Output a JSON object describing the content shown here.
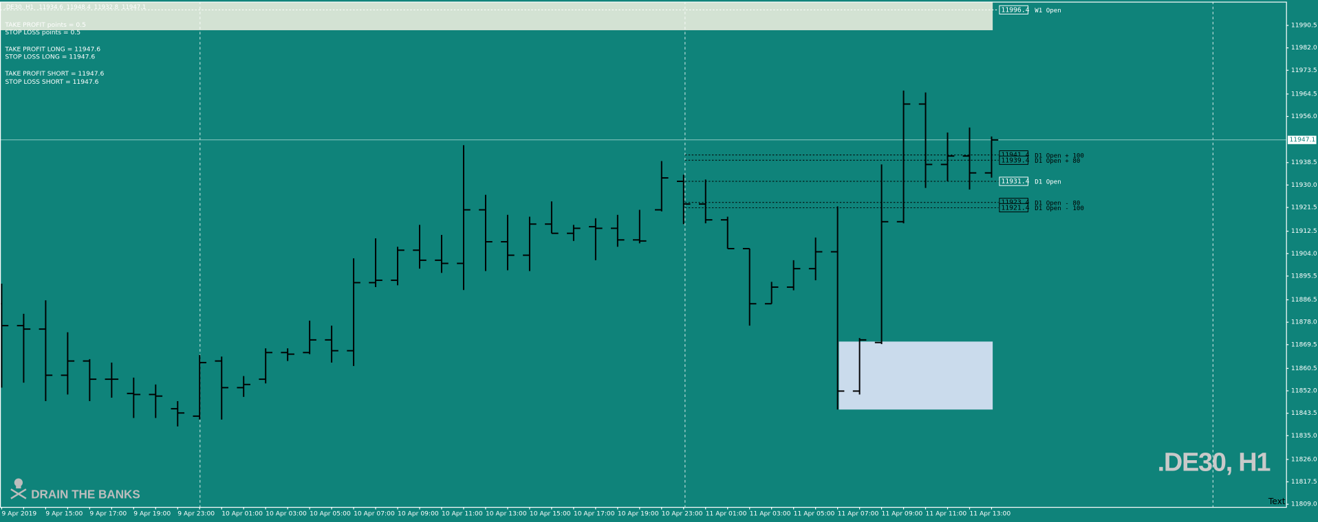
{
  "header": {
    "symbol": ".DE30, H1"
  },
  "info_lines": [
    "TAKE PROFIT points = 0.5",
    "STOP LOSS points =   0.5",
    "TAKE PROFIT LONG = 11947.6",
    "STOP LOSS LONG =   11947.6",
    "TAKE PROFIT SHORT = 11947.6",
    "STOP LOSS SHORT =   11947.6"
  ],
  "branding": "DRAIN THE BANKS",
  "corner_text": "Text",
  "chart_data": {
    "type": "ohlc",
    "color": "#000000",
    "categories": [
      "9 Apr 2019",
      null,
      "9 Apr 15:00",
      null,
      "9 Apr 17:00",
      null,
      "9 Apr 19:00",
      null,
      "9 Apr 23:00",
      null,
      "10 Apr 01:00",
      null,
      "10 Apr 03:00",
      null,
      "10 Apr 05:00",
      null,
      "10 Apr 07:00",
      null,
      "10 Apr 09:00",
      null,
      "10 Apr 11:00",
      null,
      "10 Apr 13:00",
      null,
      "10 Apr 15:00",
      null,
      "10 Apr 17:00",
      null,
      "10 Apr 19:00",
      null,
      "10 Apr 23:00",
      null,
      "11 Apr 01:00",
      null,
      "11 Apr 03:00",
      null,
      "11 Apr 05:00",
      null,
      "11 Apr 07:00",
      null,
      "11 Apr 09:00",
      null,
      "11 Apr 11:00",
      null,
      "11 Apr 13:00",
      null
    ],
    "open": [
      11885,
      11876.7,
      11875.4,
      11857.9,
      11863.3,
      11856.4,
      11851,
      11850.6,
      11845.2,
      11842.4,
      11863.3,
      11853.2,
      11856.4,
      11866.5,
      11866.5,
      11871.3,
      11867.2,
      11893,
      11893.9,
      11905.3,
      11901.5,
      11900.3,
      11920.6,
      11908.5,
      11903.4,
      11915.2,
      11911.7,
      11914.2,
      11913.6,
      11909.2,
      11920.6,
      11931.4,
      11922.8,
      11916.8,
      11905.9,
      11885,
      11891.3,
      11898.3,
      11904.7,
      11851.9,
      11870.3,
      11916.1,
      11960.7,
      11937.8,
      11941,
      11934.6
    ],
    "high": [
      11892.6,
      11881.2,
      11886.3,
      11874.2,
      11864,
      11862.7,
      11857,
      11854.4,
      11848.1,
      11865.6,
      11865,
      11857.6,
      11868.1,
      11868.1,
      11878.6,
      11876.7,
      11902.2,
      11909.8,
      11906.6,
      11914.9,
      11911.1,
      11945.1,
      11926.3,
      11918.7,
      11918,
      11923.8,
      11914.9,
      11917.4,
      11918.7,
      11920.6,
      11939.1,
      11933.9,
      11932.1,
      11918,
      11905.9,
      11893.3,
      11901.5,
      11910.1,
      11921.9,
      11872,
      11937.8,
      11965.8,
      11965.1,
      11949.9,
      11951.8,
      11948.4
    ],
    "low": [
      11853.2,
      11855.1,
      11848.1,
      11850.6,
      11848.1,
      11849.4,
      11841.7,
      11841.7,
      11838.5,
      11841.1,
      11841.1,
      11849.7,
      11854.8,
      11863.3,
      11865.9,
      11862.7,
      11861.4,
      11891.3,
      11892,
      11898.3,
      11896.7,
      11890.2,
      11897.4,
      11897.7,
      11897.4,
      11911.7,
      11908.8,
      11901.5,
      11906.6,
      11907.9,
      11920,
      11915.2,
      11915.5,
      11905.9,
      11876.7,
      11885,
      11890.1,
      11893.9,
      11844.9,
      11850.6,
      11869.7,
      11915.5,
      11928.9,
      11931.4,
      11928.3,
      11932.8
    ],
    "close": [
      11876.7,
      11875.4,
      11857.9,
      11863.3,
      11856.4,
      11856.4,
      11850.6,
      11850,
      11843.6,
      11862.7,
      11853.2,
      11854.4,
      11866.5,
      11865.9,
      11871.3,
      11867.2,
      11893,
      11893.9,
      11905.3,
      11901.5,
      11900.3,
      11920.6,
      11908.5,
      11903.4,
      11915.2,
      11911.7,
      11913.6,
      11913.6,
      11909.2,
      11908.8,
      11932.7,
      11922.8,
      11916.8,
      11905.9,
      11885,
      11891.3,
      11898.3,
      11904.7,
      11851.9,
      11871.3,
      11916.1,
      11960.7,
      11937.8,
      11941,
      11934.6,
      11947.1
    ],
    "ylim": [
      11808,
      11999.5
    ],
    "yticks": [
      11990.5,
      {
        "value": 11982,
        "label": "11982.0"
      },
      11973.5,
      11964.5,
      {
        "value": 11956,
        "label": "11956.0"
      },
      11938.5,
      {
        "value": 11930,
        "label": "11930.0"
      },
      11921.5,
      11912.5,
      {
        "value": 11904,
        "label": "11904.0"
      },
      11895.5,
      11886.5,
      {
        "value": 11878,
        "label": "11878.0"
      },
      11869.5,
      11860.5,
      {
        "value": 11852,
        "label": "11852.0"
      },
      11843.5,
      {
        "value": 11835,
        "label": "11835.0"
      },
      {
        "value": 11826,
        "label": "11826.0"
      },
      11817.5,
      {
        "value": 11809,
        "label": "11809.0"
      }
    ],
    "current_price": 11947.1,
    "levels": [
      {
        "label": "W1 Open",
        "value": 11996.4,
        "start": "week"
      },
      {
        "label": "D1 Open + 100",
        "value": 11941.4,
        "start": "day"
      },
      {
        "label": "D1 Open + 80",
        "value": 11939.4,
        "start": "day"
      },
      {
        "label": "D1 Open",
        "value": 11931.4,
        "start": "day"
      },
      {
        "label": "D1 Open - 80",
        "value": 11923.4,
        "start": "day"
      },
      {
        "label": "D1 Open - 100",
        "value": 11921.4,
        "start": "day"
      }
    ]
  }
}
